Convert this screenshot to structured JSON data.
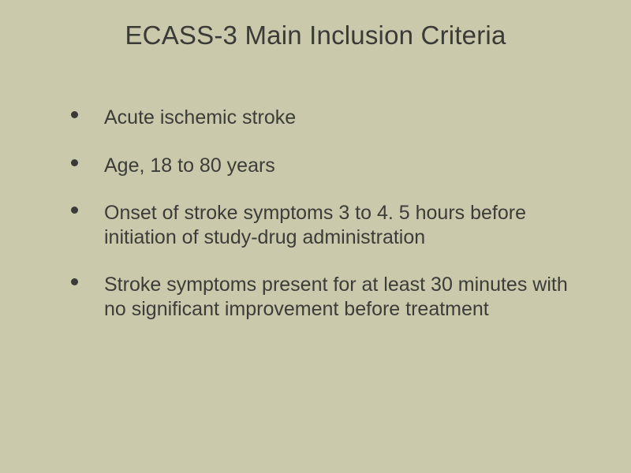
{
  "slide": {
    "title": "ECASS-3 Main Inclusion Criteria",
    "background_color": "#cac9ac",
    "text_color": "#3a3a36",
    "title_fontsize": 33,
    "body_fontsize": 25,
    "font_family": "Arial, Helvetica, sans-serif",
    "bullet_style": "disc",
    "bullet_color": "#3a3a36",
    "bullets": [
      "Acute ischemic stroke",
      "Age, 18 to 80 years",
      "Onset of stroke symptoms 3 to 4. 5 hours before initiation of study-drug administration",
      "Stroke symptoms present for at least 30 minutes with no significant improvement before treatment"
    ]
  }
}
